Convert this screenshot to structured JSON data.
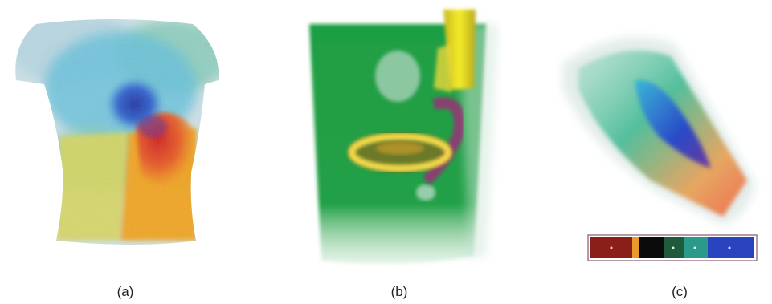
{
  "panels": [
    {
      "id": "a",
      "caption": "(a)"
    },
    {
      "id": "b",
      "caption": "(b)"
    },
    {
      "id": "c",
      "caption": "(c)"
    }
  ],
  "colors": {
    "torso_blue": "#1a3fb8",
    "torso_cyan": "#4fb8d8",
    "torso_red": "#e22a1e",
    "torso_orange": "#f2a218",
    "torso_yellow": "#d8d84a",
    "box_green": "#1f9a3a",
    "yellow_block": "#f0e81a",
    "transfer_red": "#8a1f1a",
    "transfer_green": "#1f6a4a",
    "transfer_blue": "#2a44c0"
  }
}
